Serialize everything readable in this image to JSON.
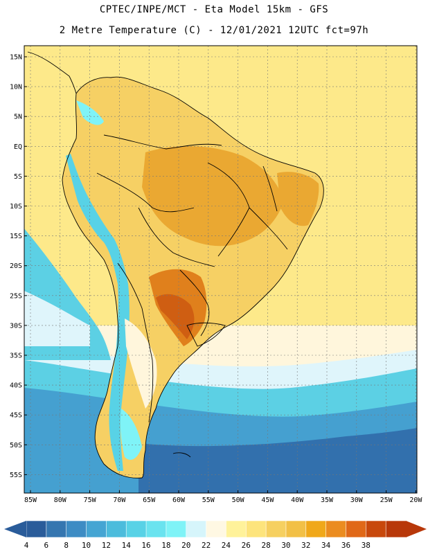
{
  "header": {
    "line1": "CPTEC/INPE/MCT -  Eta Model 15km - GFS",
    "line2": "2 Metre Temperature (C) - 12/01/2021 12UTC fct=97h"
  },
  "map": {
    "lat_labels": [
      "15N",
      "10N",
      "5N",
      "EQ",
      "5S",
      "10S",
      "15S",
      "20S",
      "25S",
      "30S",
      "35S",
      "40S",
      "45S",
      "50S",
      "55S"
    ],
    "lon_labels": [
      "85W",
      "80W",
      "75W",
      "70W",
      "65W",
      "60W",
      "55W",
      "50W",
      "45W",
      "40W",
      "35W",
      "30W",
      "25W",
      "20W"
    ]
  },
  "colorbar": {
    "ticks": [
      "4",
      "6",
      "8",
      "10",
      "12",
      "14",
      "16",
      "18",
      "20",
      "22",
      "24",
      "26",
      "28",
      "30",
      "32",
      "34",
      "36",
      "38"
    ],
    "colors": [
      "#2a5c9a",
      "#3576b0",
      "#3d8cc4",
      "#45a5d3",
      "#4cbcdc",
      "#58d2e6",
      "#6ae3ef",
      "#7ff3f7",
      "#d6f5fb",
      "#fff8e3",
      "#fff29a",
      "#fde47c",
      "#f6d060",
      "#f2c046",
      "#f0a81a",
      "#eb8c20",
      "#e06818",
      "#c8480c",
      "#b8380a"
    ],
    "low_end_color": "#2a5c9a",
    "high_end_color": "#b8380a"
  },
  "palette": {
    "ocean_south_deep": "#3270ad",
    "ocean_south": "#45a0d0",
    "ocean_cyan": "#5cd0e4",
    "ocean_light": "#dff5fb",
    "cream": "#fff6dc",
    "yellow": "#fde98a",
    "warm": "#f6d064",
    "hot": "#eaa832",
    "very_hot": "#e0801c",
    "border": "#000000",
    "grid": "#777777"
  }
}
